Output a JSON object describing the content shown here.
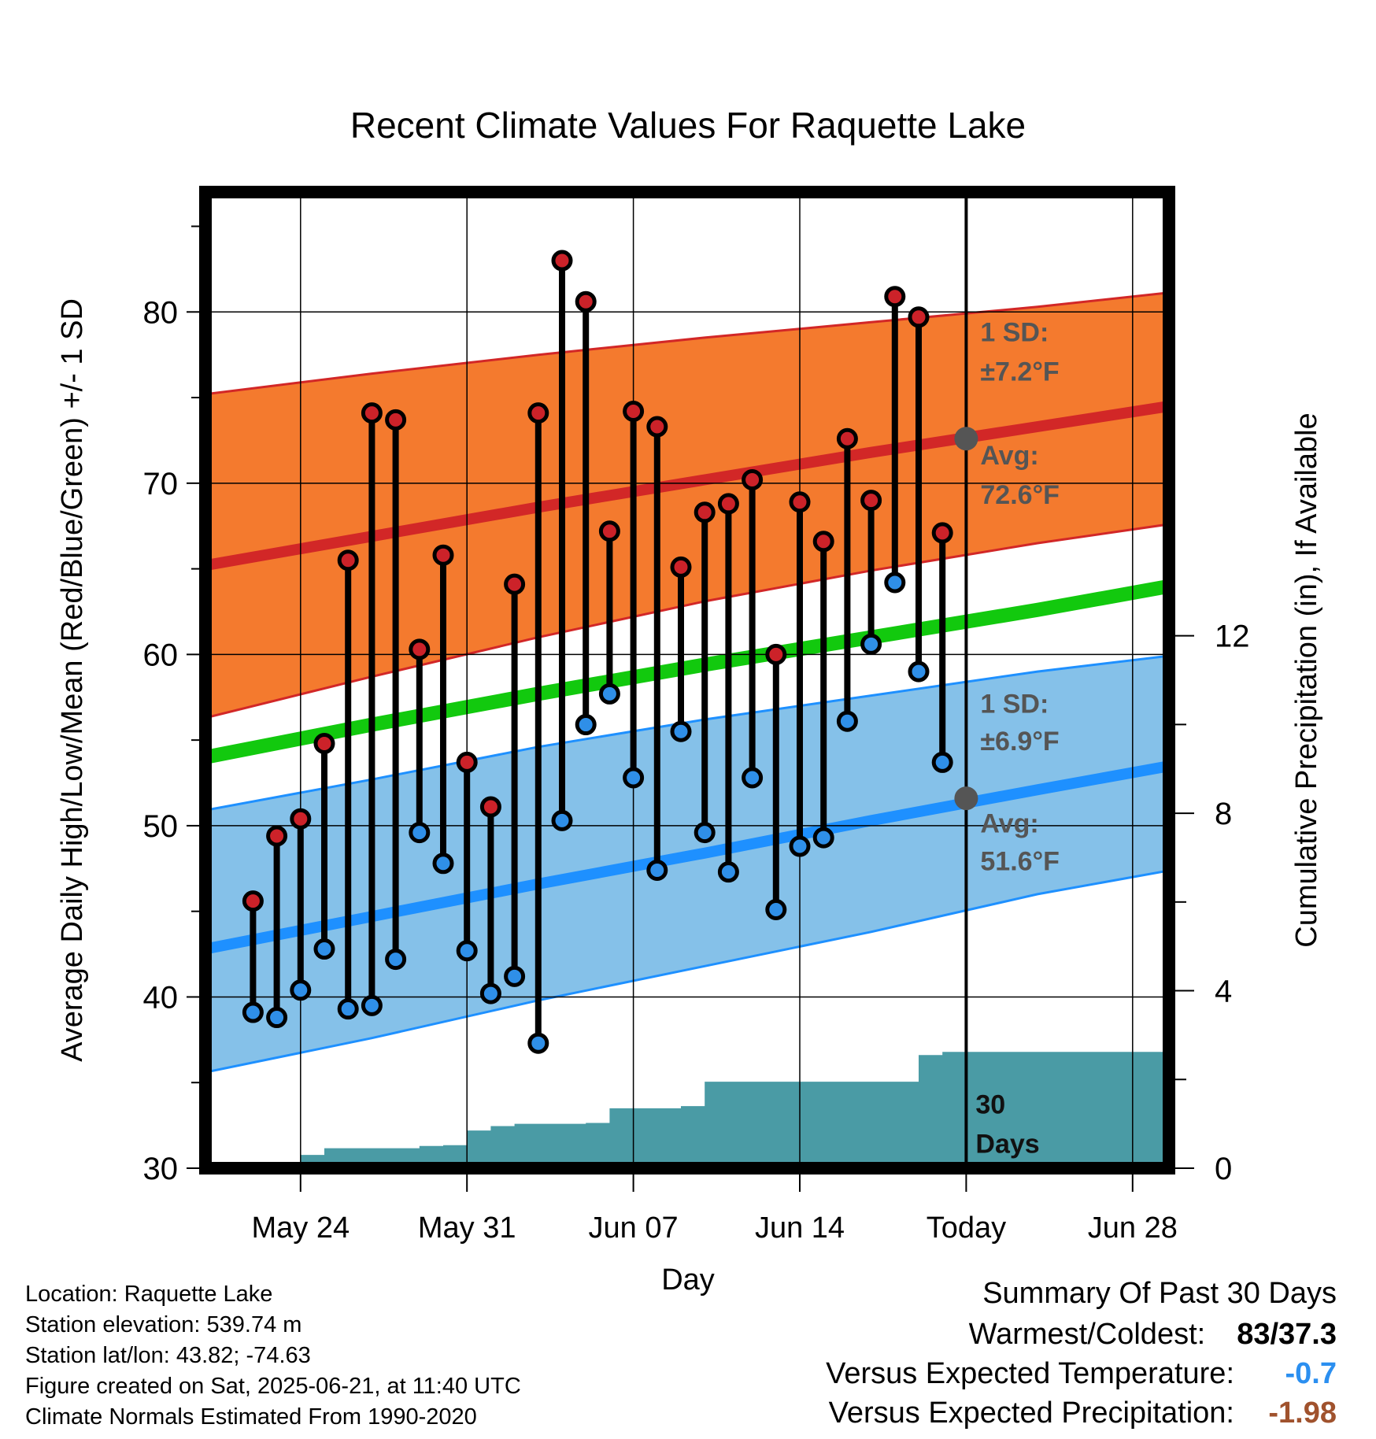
{
  "chart_data": {
    "type": "line",
    "title": "Recent Climate Values For Raquette Lake",
    "xlabel": "Day",
    "ylabel": "Average Daily High/Low/Mean (Red/Blue/Green) +/- 1 SD",
    "y2label": "Cumulative Precipitation (in), If Available",
    "ylim": [
      30,
      87
    ],
    "y2lim": [
      0,
      22
    ],
    "yticks": [
      "30",
      "40",
      "50",
      "60",
      "70",
      "80"
    ],
    "y2ticks": [
      "0",
      "4",
      "8",
      "12"
    ],
    "xlim": [
      "2025-05-20",
      "2025-06-30"
    ],
    "xticks": [
      {
        "date": "2025-05-24",
        "label": "May 24"
      },
      {
        "date": "2025-05-31",
        "label": "May 31"
      },
      {
        "date": "2025-06-07",
        "label": "Jun 07"
      },
      {
        "date": "2025-06-14",
        "label": "Jun 14"
      },
      {
        "date": "2025-06-21",
        "label": "Today"
      },
      {
        "date": "2025-06-28",
        "label": "Jun 28"
      }
    ],
    "grid": true,
    "today": "2025-06-21",
    "observed": {
      "dates": [
        "2025-05-22",
        "2025-05-23",
        "2025-05-24",
        "2025-05-25",
        "2025-05-26",
        "2025-05-27",
        "2025-05-28",
        "2025-05-29",
        "2025-05-30",
        "2025-05-31",
        "2025-06-01",
        "2025-06-02",
        "2025-06-03",
        "2025-06-04",
        "2025-06-05",
        "2025-06-06",
        "2025-06-07",
        "2025-06-08",
        "2025-06-09",
        "2025-06-10",
        "2025-06-11",
        "2025-06-12",
        "2025-06-13",
        "2025-06-14",
        "2025-06-15",
        "2025-06-16",
        "2025-06-17",
        "2025-06-18",
        "2025-06-19",
        "2025-06-20"
      ],
      "high": [
        45.6,
        49.4,
        50.4,
        54.8,
        65.5,
        74.1,
        73.7,
        60.3,
        65.8,
        53.7,
        51.1,
        64.1,
        74.1,
        83.0,
        80.6,
        67.2,
        74.2,
        73.3,
        65.1,
        68.3,
        68.8,
        70.2,
        60.0,
        68.9,
        66.6,
        72.6,
        69.0,
        80.9,
        79.7,
        67.1
      ],
      "low": [
        39.1,
        38.8,
        40.4,
        42.8,
        39.3,
        39.5,
        42.2,
        49.6,
        47.8,
        42.7,
        40.2,
        41.2,
        37.3,
        50.3,
        55.9,
        57.7,
        52.8,
        47.4,
        55.5,
        49.6,
        47.3,
        52.8,
        45.1,
        48.8,
        49.3,
        56.1,
        60.6,
        64.2,
        59.0,
        53.7
      ]
    },
    "normals": {
      "dates": [
        "2025-05-20",
        "2025-05-27",
        "2025-06-03",
        "2025-06-10",
        "2025-06-17",
        "2025-06-24",
        "2025-06-30"
      ],
      "high_avg": [
        65.2,
        66.9,
        68.6,
        70.2,
        71.8,
        73.3,
        74.6
      ],
      "high_upper": [
        75.2,
        76.4,
        77.5,
        78.5,
        79.4,
        80.3,
        81.2
      ],
      "high_lower": [
        56.3,
        58.7,
        61.0,
        63.1,
        64.9,
        66.5,
        67.7
      ],
      "mean_avg": [
        54.0,
        55.9,
        57.7,
        59.4,
        61.0,
        62.6,
        64.1
      ],
      "low_avg": [
        42.8,
        44.7,
        46.6,
        48.4,
        50.3,
        52.1,
        53.6
      ],
      "low_upper": [
        50.9,
        52.7,
        54.6,
        56.2,
        57.6,
        59.0,
        60.0
      ],
      "low_lower": [
        35.6,
        37.6,
        39.8,
        41.8,
        43.8,
        46.0,
        47.5
      ]
    },
    "precip": {
      "dates": [
        "2025-05-20",
        "2025-05-22",
        "2025-05-23",
        "2025-05-24",
        "2025-05-25",
        "2025-05-26",
        "2025-05-27",
        "2025-05-28",
        "2025-05-29",
        "2025-05-30",
        "2025-05-31",
        "2025-06-01",
        "2025-06-02",
        "2025-06-03",
        "2025-06-04",
        "2025-06-05",
        "2025-06-06",
        "2025-06-07",
        "2025-06-08",
        "2025-06-09",
        "2025-06-10",
        "2025-06-11",
        "2025-06-12",
        "2025-06-13",
        "2025-06-14",
        "2025-06-15",
        "2025-06-16",
        "2025-06-17",
        "2025-06-18",
        "2025-06-19",
        "2025-06-20",
        "2025-06-30"
      ],
      "values": [
        0,
        0,
        0,
        0.3,
        0.45,
        0.45,
        0.45,
        0.45,
        0.5,
        0.52,
        0.85,
        0.95,
        1.0,
        1.0,
        1.0,
        1.02,
        1.35,
        1.35,
        1.35,
        1.4,
        1.95,
        1.95,
        1.95,
        1.95,
        1.95,
        1.95,
        1.95,
        1.95,
        1.95,
        2.55,
        2.62,
        2.62
      ]
    },
    "annotations": {
      "high_sd_label": "1 SD:",
      "high_sd_value": "±7.2°F",
      "high_avg_label": "Avg:",
      "high_avg_value": "72.6°F",
      "high_avg_today": 72.6,
      "low_sd_label": "1 SD:",
      "low_sd_value": "±6.9°F",
      "low_avg_label": "Avg:",
      "low_avg_value": "51.6°F",
      "low_avg_today": 51.6,
      "precip_label_1": "30",
      "precip_label_2": "Days"
    },
    "colors": {
      "high_band": "#f47a2e",
      "high_line": "#d22727",
      "mean_line": "#12c90e",
      "low_band": "#85c1e9",
      "low_line": "#1e90ff",
      "precip": "#4a9ba5",
      "high_dot": "#cc2229",
      "low_dot": "#2f8fe8",
      "today_dot": "#555555"
    }
  },
  "footer": {
    "location": "Location: Raquette Lake",
    "elevation": "Station elevation: 539.74 m",
    "latlon": "Station lat/lon: 43.82; -74.63",
    "created": "Figure created on Sat, 2025-06-21, at 11:40 UTC",
    "normals": "Climate Normals Estimated From 1990-2020"
  },
  "summary": {
    "title": "Summary Of Past 30 Days",
    "warmest_label": "Warmest/Coldest:",
    "warmest_value": "83/37.3",
    "temp_label": "Versus Expected Temperature:",
    "temp_value": "-0.7",
    "temp_color": "#2b8ff0",
    "precip_label": "Versus Expected Precipitation:",
    "precip_value": "-1.98",
    "precip_color": "#a0522d"
  }
}
